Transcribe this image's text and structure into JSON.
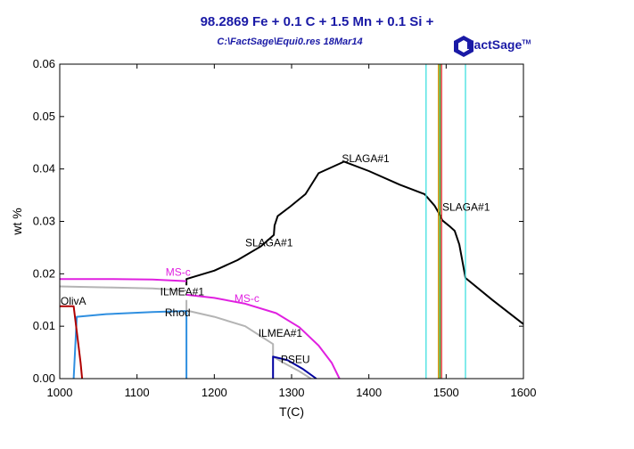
{
  "header": {
    "title": "98.2869 Fe +  0.1 C +  1.5 Mn +  0.1 Si +",
    "subtitle": "C:\\FactSage\\Equi0.res  18Mar14",
    "logo_text": "FactSage",
    "logo_tm": "TM"
  },
  "colors": {
    "black": "#000000",
    "magenta": "#e020e0",
    "gray": "#b4b4b4",
    "blue": "#2f8fe0",
    "darkred": "#b00000",
    "navy": "#0000a0",
    "cyan": "#40e0e0",
    "orange": "#d09000",
    "green": "#20a020",
    "red": "#e02020"
  },
  "chart_data": {
    "type": "line",
    "title": "98.2869 Fe +  0.1 C +  1.5 Mn +  0.1 Si +",
    "xlabel": "T(C)",
    "ylabel": "wt %",
    "xlim": [
      1000,
      1600
    ],
    "ylim": [
      0,
      0.06
    ],
    "xticks": [
      "1000",
      "1100",
      "1200",
      "1300",
      "1400",
      "1500",
      "1600"
    ],
    "yticks": [
      "0.00",
      "0.01",
      "0.02",
      "0.03",
      "0.04",
      "0.05",
      "0.06"
    ],
    "series": [
      {
        "name": "SLAGA#1",
        "color": "black",
        "points": [
          [
            1164,
            0.0178
          ],
          [
            1164,
            0.019
          ],
          [
            1200,
            0.0206
          ],
          [
            1230,
            0.0226
          ],
          [
            1260,
            0.0252
          ],
          [
            1277,
            0.0274
          ],
          [
            1278,
            0.0292
          ],
          [
            1282,
            0.031
          ],
          [
            1298,
            0.0328
          ],
          [
            1318,
            0.0352
          ],
          [
            1335,
            0.0392
          ],
          [
            1368,
            0.0414
          ],
          [
            1400,
            0.0396
          ],
          [
            1440,
            0.037
          ],
          [
            1472,
            0.0352
          ],
          [
            1485,
            0.033
          ],
          [
            1492,
            0.0312
          ],
          [
            1495,
            0.0302
          ],
          [
            1505,
            0.029
          ],
          [
            1511,
            0.0282
          ],
          [
            1517,
            0.0256
          ],
          [
            1520,
            0.0232
          ],
          [
            1525,
            0.0192
          ],
          [
            1560,
            0.015
          ],
          [
            1600,
            0.0104
          ]
        ]
      },
      {
        "name": "MS-c",
        "color": "magenta",
        "points": [
          [
            1000,
            0.019
          ],
          [
            1060,
            0.019
          ],
          [
            1120,
            0.0189
          ],
          [
            1164,
            0.0186
          ]
        ]
      },
      {
        "name": "MS-c",
        "color": "magenta",
        "points": [
          [
            1164,
            0.016
          ],
          [
            1200,
            0.0154
          ],
          [
            1240,
            0.0143
          ],
          [
            1280,
            0.0125
          ],
          [
            1310,
            0.0098
          ],
          [
            1335,
            0.0063
          ],
          [
            1352,
            0.003
          ],
          [
            1362,
            0.0
          ]
        ]
      },
      {
        "name": "ILMEA#1",
        "color": "gray",
        "points": [
          [
            1000,
            0.0176
          ],
          [
            1060,
            0.0174
          ],
          [
            1120,
            0.0172
          ],
          [
            1164,
            0.0168
          ]
        ]
      },
      {
        "name": "ILMEA#1",
        "color": "gray",
        "points": [
          [
            1164,
            0.015
          ],
          [
            1164,
            0.013
          ],
          [
            1200,
            0.0118
          ],
          [
            1240,
            0.01
          ],
          [
            1276,
            0.0066
          ],
          [
            1276,
            0.0042
          ],
          [
            1290,
            0.003
          ],
          [
            1310,
            0.0014
          ],
          [
            1325,
            0.0
          ]
        ]
      },
      {
        "name": "Rhod",
        "color": "blue",
        "points": [
          [
            1018,
            0.0
          ],
          [
            1022,
            0.0118
          ],
          [
            1060,
            0.0123
          ],
          [
            1120,
            0.0127
          ],
          [
            1164,
            0.0129
          ],
          [
            1164,
            0.0
          ]
        ]
      },
      {
        "name": "OlivA",
        "color": "darkred",
        "points": [
          [
            1000,
            0.0138
          ],
          [
            1018,
            0.0138
          ],
          [
            1022,
            0.009
          ],
          [
            1027,
            0.003
          ],
          [
            1029,
            0.0
          ]
        ]
      },
      {
        "name": "PSEU",
        "color": "navy",
        "points": [
          [
            1276,
            0.0
          ],
          [
            1276,
            0.0042
          ],
          [
            1295,
            0.0035
          ],
          [
            1315,
            0.0018
          ],
          [
            1332,
            0.0
          ]
        ]
      }
    ],
    "vlines": [
      {
        "x": 1474,
        "color": "cyan"
      },
      {
        "x": 1490,
        "color": "orange"
      },
      {
        "x": 1492,
        "color": "green"
      },
      {
        "x": 1494,
        "color": "red"
      },
      {
        "x": 1525,
        "color": "cyan"
      }
    ],
    "annotations": [
      {
        "text": "SLAGA#1",
        "x": 1365,
        "y": 0.0413,
        "color": "black"
      },
      {
        "text": "SLAGA#1",
        "x": 1495,
        "y": 0.032,
        "color": "black"
      },
      {
        "text": "SLAGA#1",
        "x": 1240,
        "y": 0.0252,
        "color": "black"
      },
      {
        "text": "MS-c",
        "x": 1137,
        "y": 0.0196,
        "color": "magenta"
      },
      {
        "text": "MS-c",
        "x": 1226,
        "y": 0.0146,
        "color": "magenta"
      },
      {
        "text": "ILMEA#1",
        "x": 1130,
        "y": 0.0159,
        "color": "black"
      },
      {
        "text": "ILMEA#1",
        "x": 1257,
        "y": 0.008,
        "color": "black"
      },
      {
        "text": "Rhod",
        "x": 1136,
        "y": 0.0119,
        "color": "black"
      },
      {
        "text": "OlivA",
        "x": 1001,
        "y": 0.0141,
        "color": "black"
      },
      {
        "text": "PSEU",
        "x": 1286,
        "y": 0.003,
        "color": "black"
      }
    ],
    "grid": false
  }
}
